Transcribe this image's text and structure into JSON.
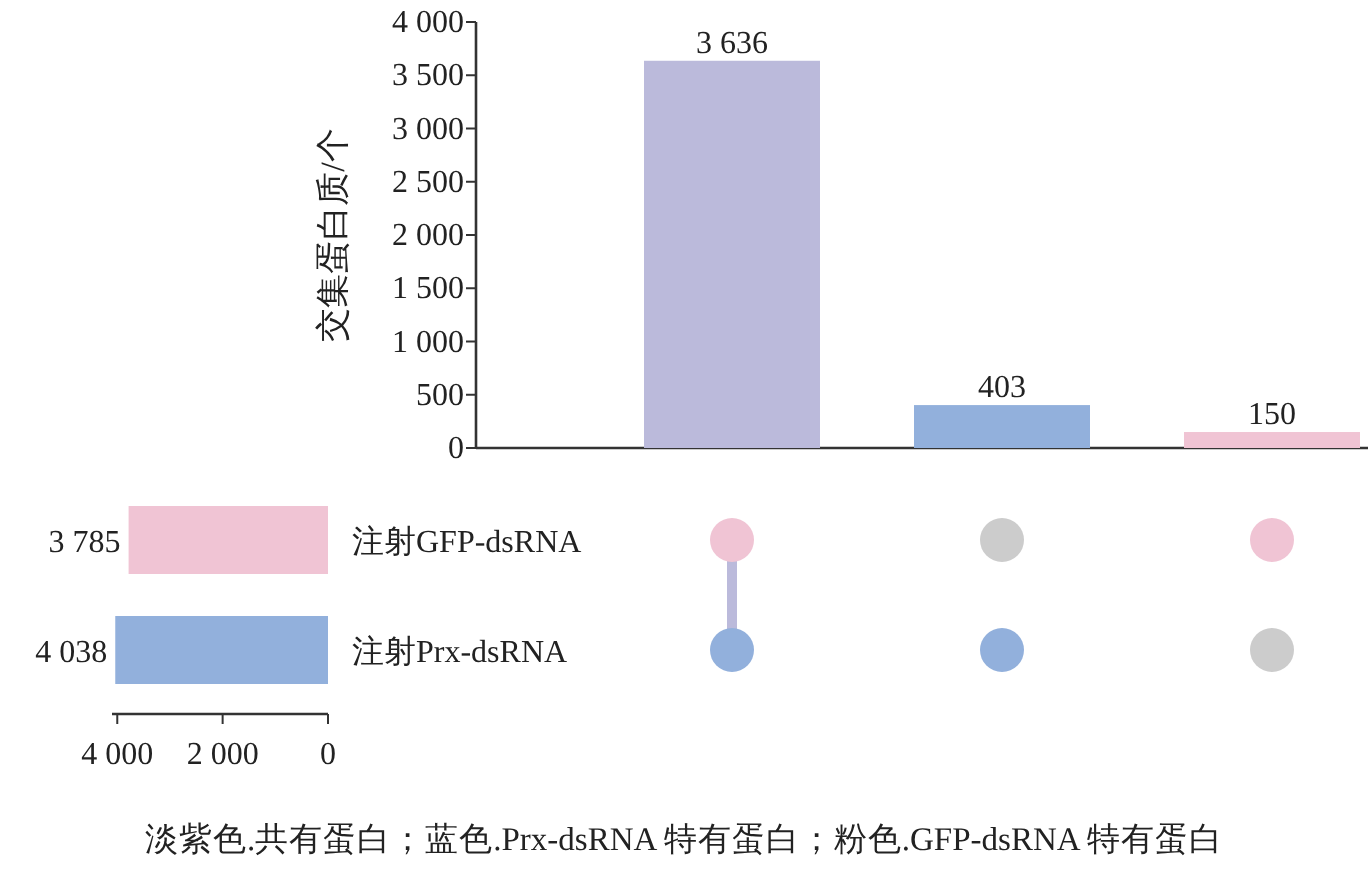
{
  "chart_data": [
    {
      "type": "bar",
      "ylabel": "交集蛋白质/个",
      "categories": [
        null,
        null,
        null
      ],
      "values": [
        3636,
        403,
        150
      ],
      "colors": [
        "#bbbadb",
        "#92b0dc",
        "#f0c4d4"
      ],
      "value_labels": [
        "3 636",
        "403",
        "150"
      ],
      "ylim": [
        0,
        4000
      ],
      "yticks": [
        0,
        500,
        {
          "value": 1000,
          "label": "1 000"
        },
        {
          "value": 1500,
          "label": "1 500"
        },
        {
          "value": 2000,
          "label": "2 000"
        },
        {
          "value": 2500,
          "label": "2 500"
        },
        {
          "value": 3000,
          "label": "3 000"
        },
        {
          "value": 3500,
          "label": "3 500"
        },
        {
          "value": 4000,
          "label": "4 000"
        }
      ]
    },
    {
      "type": "bar",
      "orientation": "horizontal",
      "categories": [
        "注射GFP-dsRNA",
        "注射Prx-dsRNA"
      ],
      "values": [
        3785,
        4038
      ],
      "colors": [
        "#f0c4d4",
        "#92b0dc"
      ],
      "value_labels": [
        "3 785",
        "4 038"
      ],
      "xlim": [
        4100,
        0
      ],
      "xticks": [
        {
          "value": 4000,
          "label": "4 000"
        },
        {
          "value": 2000,
          "label": "2 000"
        },
        0
      ],
      "annotations": [
        "淡紫色.共有蛋白；蓝色.Prx-dsRNA 特有蛋白；粉色.GFP-dsRNA 特有蛋白"
      ]
    }
  ]
}
